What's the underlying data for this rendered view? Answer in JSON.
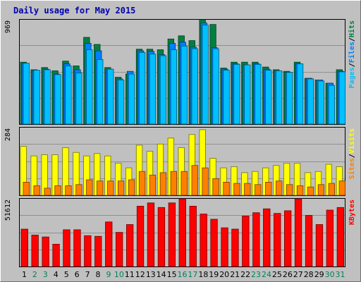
{
  "chart_data": {
    "type": "bar",
    "title": "Daily usage for May 2015",
    "categories": [
      "1",
      "2",
      "3",
      "4",
      "5",
      "6",
      "7",
      "8",
      "9",
      "10",
      "11",
      "12",
      "13",
      "14",
      "15",
      "16",
      "17",
      "18",
      "19",
      "20",
      "21",
      "22",
      "23",
      "24",
      "25",
      "26",
      "27",
      "28",
      "29",
      "30",
      "31"
    ],
    "weekend_days": [
      "2",
      "3",
      "9",
      "10",
      "16",
      "17",
      "23",
      "24",
      "30",
      "31"
    ],
    "panels": [
      {
        "id": "top",
        "max_label": "969",
        "ylim": [
          0,
          969
        ],
        "legend": [
          "Pages",
          "/",
          "Files",
          "/",
          "Hits"
        ],
        "legend_colors": [
          "#00c0ff",
          "#000000",
          "#0080ff",
          "#000000",
          "#008040"
        ],
        "series": [
          {
            "name": "Hits",
            "color": "#008040",
            "values": [
              575,
              505,
              525,
              495,
              585,
              540,
              805,
              740,
              525,
              435,
              465,
              695,
              695,
              690,
              790,
              820,
              775,
              970,
              925,
              520,
              575,
              575,
              575,
              530,
              505,
              490,
              575,
              425,
              410,
              380,
              505
            ]
          },
          {
            "name": "Files",
            "color": "#0080ff",
            "values": [
              560,
              495,
              510,
              465,
              560,
              505,
              750,
              680,
              510,
              420,
              490,
              680,
              675,
              645,
              750,
              760,
              715,
              940,
              710,
              510,
              560,
              550,
              560,
              510,
              495,
              480,
              560,
              425,
              410,
              380,
              490
            ]
          },
          {
            "name": "Pages",
            "color": "#00c0ff",
            "values": [
              565,
              500,
              505,
              460,
              540,
              475,
              690,
              600,
              510,
              410,
              465,
              665,
              650,
              635,
              690,
              725,
              700,
              920,
              700,
              500,
              555,
              550,
              555,
              500,
              495,
              480,
              560,
              420,
              400,
              360,
              485
            ]
          }
        ]
      },
      {
        "id": "middle",
        "max_label": "284",
        "ylim": [
          0,
          284
        ],
        "legend": [
          "Sites",
          "/",
          "Visits"
        ],
        "legend_colors": [
          "#ff8000",
          "#000000",
          "#ffff00"
        ],
        "series": [
          {
            "name": "Visits",
            "color": "#ffff00",
            "values": [
              205,
              165,
              170,
              170,
              200,
              180,
              165,
              175,
              165,
              135,
              115,
              210,
              185,
              215,
              240,
              200,
              255,
              275,
              155,
              115,
              120,
              95,
              100,
              115,
              125,
              135,
              135,
              95,
              100,
              130,
              120
            ]
          },
          {
            "name": "Sites",
            "color": "#ff8000",
            "values": [
              55,
              40,
              30,
              40,
              40,
              45,
              65,
              60,
              60,
              60,
              65,
              100,
              85,
              95,
              100,
              100,
              125,
              115,
              70,
              55,
              50,
              50,
              45,
              55,
              60,
              45,
              40,
              35,
              45,
              50,
              60
            ]
          }
        ]
      },
      {
        "id": "bottom",
        "max_label": "51612",
        "ylim": [
          0,
          51612
        ],
        "legend": [
          "KBytes"
        ],
        "legend_colors": [
          "#ff0000"
        ],
        "series": [
          {
            "name": "KBytes",
            "color": "#ff0000",
            "values": [
              28500,
              24000,
              22500,
              17000,
              28000,
              28000,
              23500,
              23000,
              34000,
              26000,
              32000,
              46000,
              48500,
              45000,
              48500,
              51612,
              46000,
              40000,
              36000,
              29500,
              28500,
              38500,
              41000,
              44000,
              40500,
              42500,
              51612,
              39000,
              32000,
              43000,
              45000
            ]
          }
        ]
      }
    ]
  }
}
